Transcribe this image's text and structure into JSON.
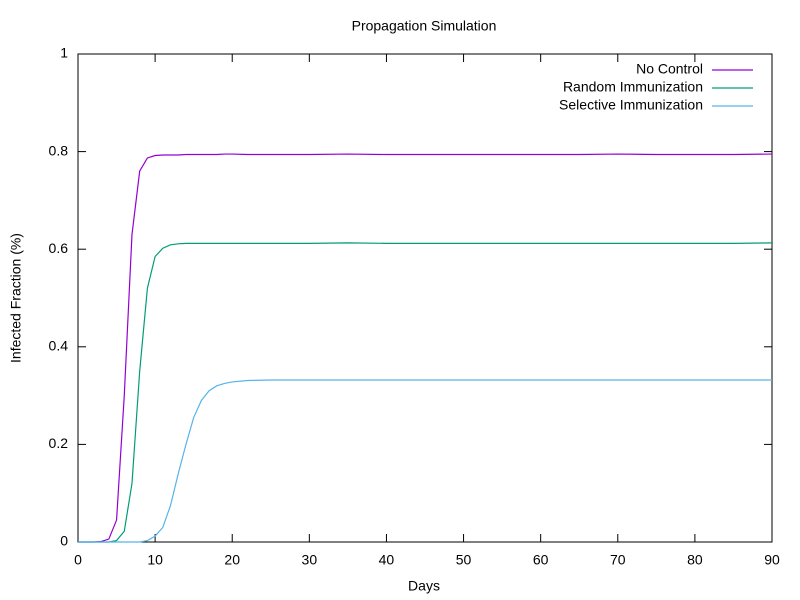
{
  "chart_data": {
    "type": "line",
    "title": "Propagation Simulation",
    "x_label": "Days",
    "y_label": "Infected Fraction (%)",
    "x": [
      0,
      1,
      2,
      3,
      4,
      5,
      6,
      7,
      8,
      9,
      10,
      11,
      12,
      13,
      14,
      15,
      16,
      17,
      18,
      19,
      20,
      22,
      25,
      30,
      35,
      40,
      45,
      50,
      55,
      60,
      65,
      70,
      75,
      80,
      85,
      90
    ],
    "series": [
      {
        "name": "No Control",
        "color": "#9400d3",
        "values": [
          0,
          0,
          0,
          0.001,
          0.006,
          0.045,
          0.3,
          0.63,
          0.76,
          0.787,
          0.792,
          0.793,
          0.793,
          0.793,
          0.794,
          0.794,
          0.794,
          0.794,
          0.794,
          0.795,
          0.795,
          0.794,
          0.794,
          0.794,
          0.795,
          0.794,
          0.794,
          0.794,
          0.794,
          0.794,
          0.794,
          0.795,
          0.794,
          0.794,
          0.794,
          0.795
        ]
      },
      {
        "name": "Random Immunization",
        "color": "#009e73",
        "values": [
          0,
          0,
          0,
          0,
          0,
          0.003,
          0.022,
          0.12,
          0.35,
          0.52,
          0.585,
          0.602,
          0.609,
          0.611,
          0.612,
          0.612,
          0.612,
          0.612,
          0.612,
          0.612,
          0.612,
          0.612,
          0.612,
          0.612,
          0.613,
          0.612,
          0.612,
          0.612,
          0.612,
          0.612,
          0.612,
          0.612,
          0.612,
          0.612,
          0.612,
          0.613
        ]
      },
      {
        "name": "Selective Immunization",
        "color": "#56b4e9",
        "values": [
          0,
          0,
          0,
          0,
          0,
          0,
          0,
          0,
          0,
          0.003,
          0.012,
          0.03,
          0.075,
          0.14,
          0.2,
          0.255,
          0.29,
          0.31,
          0.32,
          0.325,
          0.328,
          0.331,
          0.332,
          0.332,
          0.332,
          0.332,
          0.332,
          0.332,
          0.332,
          0.332,
          0.332,
          0.332,
          0.332,
          0.332,
          0.332,
          0.332
        ]
      }
    ],
    "xlim": [
      0,
      90
    ],
    "xticks": [
      0,
      10,
      20,
      30,
      40,
      50,
      60,
      70,
      80,
      90
    ],
    "ylim": [
      0,
      1
    ],
    "yticks": [
      0,
      0.2,
      0.4,
      0.6,
      0.8,
      1
    ],
    "legend": "top-right"
  }
}
